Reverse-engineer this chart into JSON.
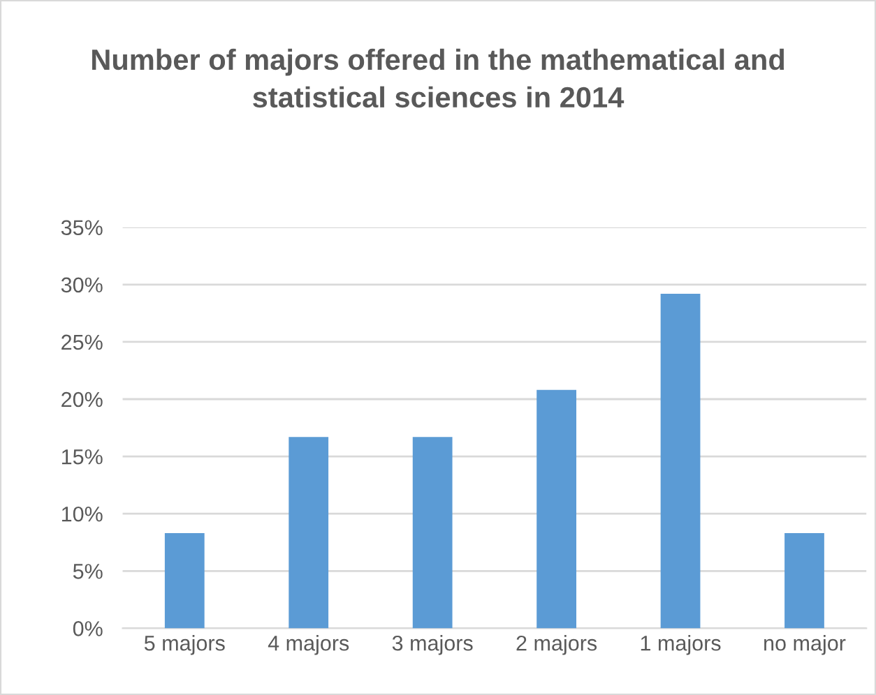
{
  "chart_data": {
    "type": "bar",
    "title": "Number of majors offered in the mathematical and statistical sciences in 2014",
    "categories": [
      "5 majors",
      "4 majors",
      "3 majors",
      "2 majors",
      "1 majors",
      "no major"
    ],
    "values": [
      8.3,
      16.7,
      16.7,
      20.8,
      29.2,
      8.3
    ],
    "color": "#5b9bd5",
    "ylim": [
      0,
      35
    ],
    "yticks": [
      {
        "value": 0,
        "label": "0%"
      },
      {
        "value": 5,
        "label": "5%"
      },
      {
        "value": 10,
        "label": "10%"
      },
      {
        "value": 15,
        "label": "15%"
      },
      {
        "value": 20,
        "label": "20%"
      },
      {
        "value": 25,
        "label": "25%"
      },
      {
        "value": 30,
        "label": "30%"
      },
      {
        "value": 35,
        "label": "35%"
      }
    ],
    "grid": "y",
    "legend": false
  }
}
